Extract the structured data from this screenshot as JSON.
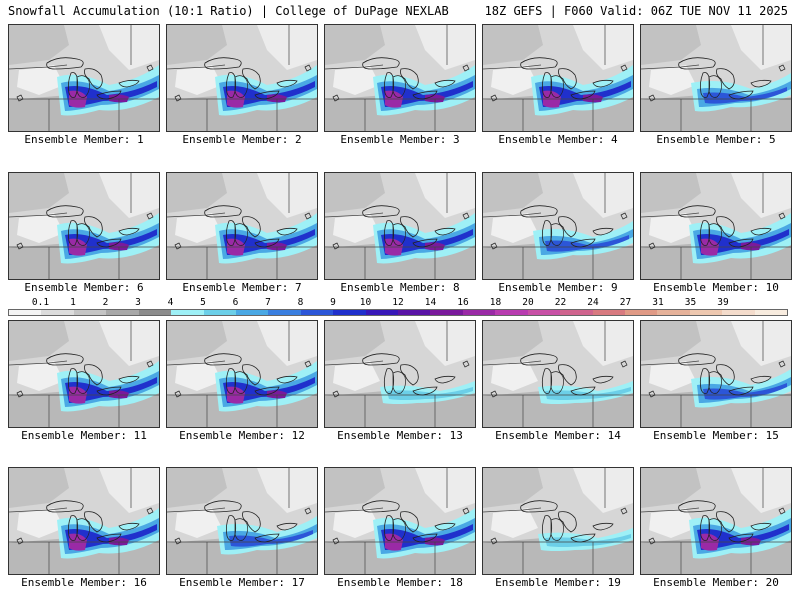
{
  "header": {
    "left": "Snowfall Accumulation (10:1 Ratio) | College of DuPage NEXLAB",
    "right": "18Z GEFS | F060 Valid: 06Z TUE NOV 11 2025"
  },
  "caption_prefix": "Ensemble Member: ",
  "members": [
    {
      "label": "Ensemble Member: 1",
      "intensity": "heavy"
    },
    {
      "label": "Ensemble Member: 2",
      "intensity": "heavy"
    },
    {
      "label": "Ensemble Member: 3",
      "intensity": "heavy"
    },
    {
      "label": "Ensemble Member: 4",
      "intensity": "heavy"
    },
    {
      "label": "Ensemble Member: 5",
      "intensity": "moderate"
    },
    {
      "label": "Ensemble Member: 6",
      "intensity": "heavy"
    },
    {
      "label": "Ensemble Member: 7",
      "intensity": "heavy"
    },
    {
      "label": "Ensemble Member: 8",
      "intensity": "heavy"
    },
    {
      "label": "Ensemble Member: 9",
      "intensity": "moderate"
    },
    {
      "label": "Ensemble Member: 10",
      "intensity": "heavy"
    },
    {
      "label": "Ensemble Member: 11",
      "intensity": "heavy"
    },
    {
      "label": "Ensemble Member: 12",
      "intensity": "heavy"
    },
    {
      "label": "Ensemble Member: 13",
      "intensity": "light"
    },
    {
      "label": "Ensemble Member: 14",
      "intensity": "light"
    },
    {
      "label": "Ensemble Member: 15",
      "intensity": "moderate"
    },
    {
      "label": "Ensemble Member: 16",
      "intensity": "heavy"
    },
    {
      "label": "Ensemble Member: 17",
      "intensity": "moderate"
    },
    {
      "label": "Ensemble Member: 18",
      "intensity": "heavy"
    },
    {
      "label": "Ensemble Member: 19",
      "intensity": "light"
    },
    {
      "label": "Ensemble Member: 20",
      "intensity": "heavy"
    }
  ],
  "colorbar": {
    "labels": [
      "0.1",
      "1",
      "2",
      "3",
      "4",
      "5",
      "6",
      "7",
      "8",
      "9",
      "10",
      "12",
      "14",
      "16",
      "18",
      "20",
      "22",
      "24",
      "27",
      "31",
      "35",
      "39"
    ],
    "colors": [
      "#f4f4f4",
      "#dcdcdc",
      "#c4c4c4",
      "#a8a8a8",
      "#8c8c8c",
      "#9ef0f6",
      "#6ccfe8",
      "#4aa8e4",
      "#3a7fe0",
      "#2c56d8",
      "#2030cc",
      "#3818b8",
      "#5a14a6",
      "#7a1a9c",
      "#9a2aa6",
      "#b83cb0",
      "#c850a6",
      "#d0648e",
      "#d87a80",
      "#e09a86",
      "#e6b29a",
      "#eec8b0",
      "#f4dccc",
      "#f8ecdf"
    ]
  }
}
